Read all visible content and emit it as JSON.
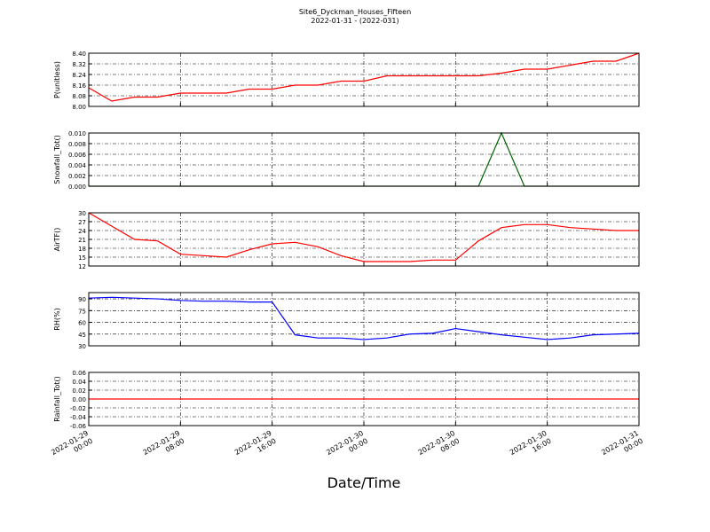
{
  "title": "Site6_Dyckman_Houses_Fifteen",
  "subtitle": "2022-01-31 - (2022-031)",
  "xlabel": "Date/Time",
  "chart_data": [
    {
      "type": "line",
      "ylabel": "P(unitless)",
      "color": "#ff0000",
      "x": [
        "2022-01-29 00:00",
        "2022-01-29 02:00",
        "2022-01-29 04:00",
        "2022-01-29 06:00",
        "2022-01-29 08:00",
        "2022-01-29 10:00",
        "2022-01-29 12:00",
        "2022-01-29 14:00",
        "2022-01-29 16:00",
        "2022-01-29 18:00",
        "2022-01-29 20:00",
        "2022-01-29 22:00",
        "2022-01-30 00:00",
        "2022-01-30 02:00",
        "2022-01-30 04:00",
        "2022-01-30 06:00",
        "2022-01-30 08:00",
        "2022-01-30 10:00",
        "2022-01-30 12:00",
        "2022-01-30 14:00",
        "2022-01-30 16:00",
        "2022-01-30 18:00",
        "2022-01-30 20:00",
        "2022-01-30 22:00",
        "2022-01-31 00:00"
      ],
      "values": [
        8.14,
        8.04,
        8.07,
        8.07,
        8.1,
        8.1,
        8.1,
        8.13,
        8.13,
        8.16,
        8.16,
        8.19,
        8.19,
        8.23,
        8.23,
        8.23,
        8.23,
        8.23,
        8.25,
        8.28,
        8.28,
        8.31,
        8.34,
        8.34,
        8.4
      ],
      "xlim": [
        "2022-01-29 00:00",
        "2022-01-31 00:00"
      ],
      "xticks": [
        "2022-01-29 00:00",
        "2022-01-29 08:00",
        "2022-01-29 16:00",
        "2022-01-30 00:00",
        "2022-01-30 08:00",
        "2022-01-30 16:00",
        "2022-01-31 00:00"
      ],
      "ylim": [
        8.0,
        8.4
      ],
      "yticks": [
        {
          "value": 8.0,
          "label": "8.00"
        },
        {
          "value": 8.08,
          "label": "8.08"
        },
        {
          "value": 8.16,
          "label": "8.16"
        },
        {
          "value": 8.24,
          "label": "8.24"
        },
        {
          "value": 8.32,
          "label": "8.32"
        },
        {
          "value": 8.4,
          "label": "8.40"
        }
      ],
      "grid": true
    },
    {
      "type": "line",
      "ylabel": "Snowfall_Tot()",
      "color": "#006400",
      "x": [
        "2022-01-29 00:00",
        "2022-01-29 02:00",
        "2022-01-29 04:00",
        "2022-01-29 06:00",
        "2022-01-29 08:00",
        "2022-01-29 10:00",
        "2022-01-29 12:00",
        "2022-01-29 14:00",
        "2022-01-29 16:00",
        "2022-01-29 18:00",
        "2022-01-29 20:00",
        "2022-01-29 22:00",
        "2022-01-30 00:00",
        "2022-01-30 02:00",
        "2022-01-30 04:00",
        "2022-01-30 06:00",
        "2022-01-30 08:00",
        "2022-01-30 10:00",
        "2022-01-30 12:00",
        "2022-01-30 14:00",
        "2022-01-30 16:00",
        "2022-01-30 18:00",
        "2022-01-30 20:00",
        "2022-01-30 22:00",
        "2022-01-31 00:00"
      ],
      "values": [
        0,
        0,
        0,
        0,
        0,
        0,
        0,
        0,
        0,
        0,
        0,
        0,
        0,
        0,
        0,
        0,
        0,
        0,
        0.01,
        0,
        0,
        0,
        0,
        0,
        0
      ],
      "xlim": [
        "2022-01-29 00:00",
        "2022-01-31 00:00"
      ],
      "xticks": [
        "2022-01-29 00:00",
        "2022-01-29 08:00",
        "2022-01-29 16:00",
        "2022-01-30 00:00",
        "2022-01-30 08:00",
        "2022-01-30 16:00",
        "2022-01-31 00:00"
      ],
      "ylim": [
        0,
        0.01
      ],
      "yticks": [
        {
          "value": 0,
          "label": "0.000"
        },
        {
          "value": 0.002,
          "label": "0.002"
        },
        {
          "value": 0.004,
          "label": "0.004"
        },
        {
          "value": 0.006,
          "label": "0.006"
        },
        {
          "value": 0.008,
          "label": "0.008"
        },
        {
          "value": 0.01,
          "label": "0.010"
        }
      ],
      "grid": true
    },
    {
      "type": "line",
      "ylabel": "AirTF()",
      "color": "#ff0000",
      "x": [
        "2022-01-29 00:00",
        "2022-01-29 02:00",
        "2022-01-29 04:00",
        "2022-01-29 06:00",
        "2022-01-29 08:00",
        "2022-01-29 10:00",
        "2022-01-29 12:00",
        "2022-01-29 14:00",
        "2022-01-29 16:00",
        "2022-01-29 18:00",
        "2022-01-29 20:00",
        "2022-01-29 22:00",
        "2022-01-30 00:00",
        "2022-01-30 02:00",
        "2022-01-30 04:00",
        "2022-01-30 06:00",
        "2022-01-30 08:00",
        "2022-01-30 10:00",
        "2022-01-30 12:00",
        "2022-01-30 14:00",
        "2022-01-30 16:00",
        "2022-01-30 18:00",
        "2022-01-30 20:00",
        "2022-01-30 22:00",
        "2022-01-31 00:00"
      ],
      "values": [
        30,
        25.5,
        21,
        20.5,
        16,
        15.5,
        15,
        17.5,
        19.5,
        20,
        18.5,
        15.5,
        13.5,
        13.5,
        13.5,
        14,
        14,
        20.5,
        25,
        26,
        26,
        25,
        24.5,
        24,
        24
      ],
      "xlim": [
        "2022-01-29 00:00",
        "2022-01-31 00:00"
      ],
      "xticks": [
        "2022-01-29 00:00",
        "2022-01-29 08:00",
        "2022-01-29 16:00",
        "2022-01-30 00:00",
        "2022-01-30 08:00",
        "2022-01-30 16:00",
        "2022-01-31 00:00"
      ],
      "ylim": [
        12,
        30
      ],
      "yticks": [
        12,
        15,
        18,
        21,
        24,
        27,
        30
      ],
      "grid": true
    },
    {
      "type": "line",
      "ylabel": "RH(%)",
      "color": "#0000ff",
      "x": [
        "2022-01-29 00:00",
        "2022-01-29 02:00",
        "2022-01-29 04:00",
        "2022-01-29 06:00",
        "2022-01-29 08:00",
        "2022-01-29 10:00",
        "2022-01-29 12:00",
        "2022-01-29 14:00",
        "2022-01-29 16:00",
        "2022-01-29 18:00",
        "2022-01-29 20:00",
        "2022-01-29 22:00",
        "2022-01-30 00:00",
        "2022-01-30 02:00",
        "2022-01-30 04:00",
        "2022-01-30 06:00",
        "2022-01-30 08:00",
        "2022-01-30 10:00",
        "2022-01-30 12:00",
        "2022-01-30 14:00",
        "2022-01-30 16:00",
        "2022-01-30 18:00",
        "2022-01-30 20:00",
        "2022-01-30 22:00",
        "2022-01-31 00:00"
      ],
      "values": [
        91,
        92,
        91,
        90,
        88,
        87,
        87,
        86,
        86,
        44,
        40,
        40,
        38,
        40,
        45,
        46,
        52,
        48,
        44,
        41,
        38,
        40,
        44,
        45,
        46
      ],
      "xlim": [
        "2022-01-29 00:00",
        "2022-01-31 00:00"
      ],
      "xticks": [
        "2022-01-29 00:00",
        "2022-01-29 08:00",
        "2022-01-29 16:00",
        "2022-01-30 00:00",
        "2022-01-30 08:00",
        "2022-01-30 16:00",
        "2022-01-31 00:00"
      ],
      "ylim": [
        30,
        98
      ],
      "yticks": [
        30,
        45,
        60,
        75,
        90
      ],
      "grid": true
    },
    {
      "type": "line",
      "ylabel": "Rainfall_Tot()",
      "color": "#ff0000",
      "x": [
        "2022-01-29 00:00",
        "2022-01-29 02:00",
        "2022-01-29 04:00",
        "2022-01-29 06:00",
        "2022-01-29 08:00",
        "2022-01-29 10:00",
        "2022-01-29 12:00",
        "2022-01-29 14:00",
        "2022-01-29 16:00",
        "2022-01-29 18:00",
        "2022-01-29 20:00",
        "2022-01-29 22:00",
        "2022-01-30 00:00",
        "2022-01-30 02:00",
        "2022-01-30 04:00",
        "2022-01-30 06:00",
        "2022-01-30 08:00",
        "2022-01-30 10:00",
        "2022-01-30 12:00",
        "2022-01-30 14:00",
        "2022-01-30 16:00",
        "2022-01-30 18:00",
        "2022-01-30 20:00",
        "2022-01-30 22:00",
        "2022-01-31 00:00"
      ],
      "values": [
        0,
        0,
        0,
        0,
        0,
        0,
        0,
        0,
        0,
        0,
        0,
        0,
        0,
        0,
        0,
        0,
        0,
        0,
        0,
        0,
        0,
        0,
        0,
        0,
        0
      ],
      "xlim": [
        "2022-01-29 00:00",
        "2022-01-31 00:00"
      ],
      "xticks": [
        "2022-01-29 00:00",
        "2022-01-29 08:00",
        "2022-01-29 16:00",
        "2022-01-30 00:00",
        "2022-01-30 08:00",
        "2022-01-30 16:00",
        "2022-01-31 00:00"
      ],
      "ylim": [
        -0.06,
        0.06
      ],
      "yticks": [
        {
          "value": -0.06,
          "label": "-0.06"
        },
        {
          "value": -0.04,
          "label": "-0.04"
        },
        {
          "value": -0.02,
          "label": "-0.02"
        },
        {
          "value": 0,
          "label": "0.00"
        },
        {
          "value": 0.02,
          "label": "0.02"
        },
        {
          "value": 0.04,
          "label": "0.04"
        },
        {
          "value": 0.06,
          "label": "0.06"
        }
      ],
      "grid": true
    }
  ]
}
